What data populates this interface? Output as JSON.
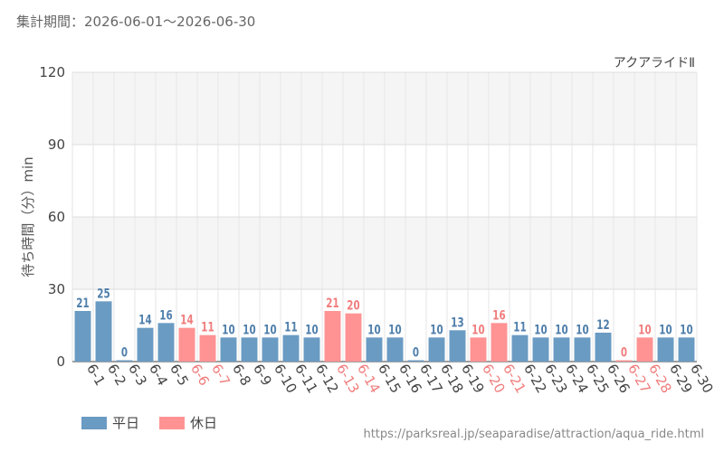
{
  "period_label": "集計期間：2026-06-01～2026-06-30",
  "source_url": "https://parksreal.jp/seaparadise/attraction/aqua_ride.html",
  "legend": [
    {
      "label": "平日",
      "color": "#6a9bc3"
    },
    {
      "label": "休日",
      "color": "#ff9393"
    }
  ],
  "chart_data": {
    "type": "bar",
    "title": "アクアライドⅡ",
    "ylabel": "待ち時間（分）min",
    "ylim": [
      0,
      120
    ],
    "yticks": [
      "0",
      "30",
      "60",
      "90",
      "120"
    ],
    "grid": true,
    "legend_position": "bottom-left",
    "categories": [
      "6-1",
      "6-2",
      "6-3",
      "6-4",
      "6-5",
      "6-6",
      "6-7",
      "6-8",
      "6-9",
      "6-10",
      "6-11",
      "6-12",
      "6-13",
      "6-14",
      "6-15",
      "6-16",
      "6-17",
      "6-18",
      "6-19",
      "6-20",
      "6-21",
      "6-22",
      "6-23",
      "6-24",
      "6-25",
      "6-26",
      "6-27",
      "6-28",
      "6-29",
      "6-30"
    ],
    "values": [
      21,
      25,
      0,
      14,
      16,
      14,
      11,
      10,
      10,
      10,
      11,
      10,
      21,
      20,
      10,
      10,
      0,
      10,
      13,
      10,
      16,
      11,
      10,
      10,
      10,
      12,
      0,
      10,
      10,
      10
    ],
    "day_type": [
      "平日",
      "平日",
      "平日",
      "平日",
      "平日",
      "休日",
      "休日",
      "平日",
      "平日",
      "平日",
      "平日",
      "平日",
      "休日",
      "休日",
      "平日",
      "平日",
      "平日",
      "平日",
      "平日",
      "休日",
      "休日",
      "平日",
      "平日",
      "平日",
      "平日",
      "平日",
      "休日",
      "休日",
      "平日",
      "平日"
    ],
    "colors": {
      "平日": "#6a9bc3",
      "休日": "#ff9393"
    },
    "label_colors": {
      "平日": "#4f7fab",
      "休日": "#f07d7d"
    }
  }
}
